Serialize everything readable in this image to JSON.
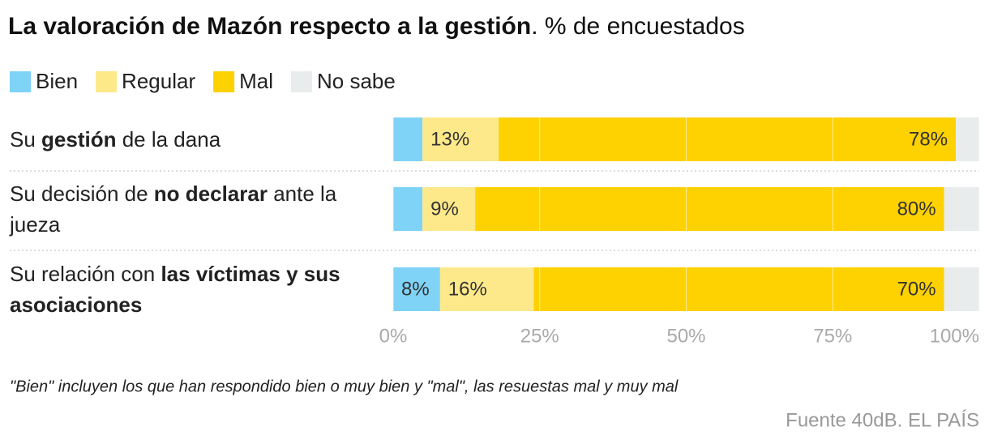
{
  "chart_data": {
    "type": "stacked-bar-horizontal",
    "title": "La valoración de Mazón respecto a la gestión",
    "subtitle": ". % de encuestados",
    "categories": [
      [
        "Su ",
        "gestión",
        " de la dana"
      ],
      [
        "Su decisión de ",
        "no declarar",
        " ante la jueza"
      ],
      [
        "Su relación con ",
        "las víctimas y sus asociaciones"
      ]
    ],
    "series": [
      {
        "name": "Bien",
        "color": "#7fd3f7",
        "values": [
          5,
          5,
          8
        ],
        "value_labels": [
          null,
          null,
          "8%"
        ]
      },
      {
        "name": "Regular",
        "color": "#fde98a",
        "values": [
          13,
          9,
          16
        ],
        "value_labels": [
          "13%",
          "9%",
          "16%"
        ]
      },
      {
        "name": "Mal",
        "color": "#fed100",
        "values": [
          78,
          80,
          70
        ],
        "value_labels": [
          "78%",
          "80%",
          "70%"
        ]
      },
      {
        "name": "No sabe",
        "color": "#e8ecec",
        "values": [
          4,
          6,
          6
        ],
        "value_labels": [
          null,
          null,
          null
        ]
      }
    ],
    "xlim": [
      0,
      100
    ],
    "xticks": [
      {
        "value": 0,
        "label": "0%"
      },
      {
        "value": 25,
        "label": "25%"
      },
      {
        "value": 50,
        "label": "50%"
      },
      {
        "value": 75,
        "label": "75%"
      },
      {
        "value": 100,
        "label": "100%"
      }
    ],
    "grid": true,
    "note": "\"Bien\" incluyen los que han respondido bien o muy bien y \"mal\", las resuestas mal y muy mal",
    "source": "Fuente 40dB. EL PAÍS"
  }
}
